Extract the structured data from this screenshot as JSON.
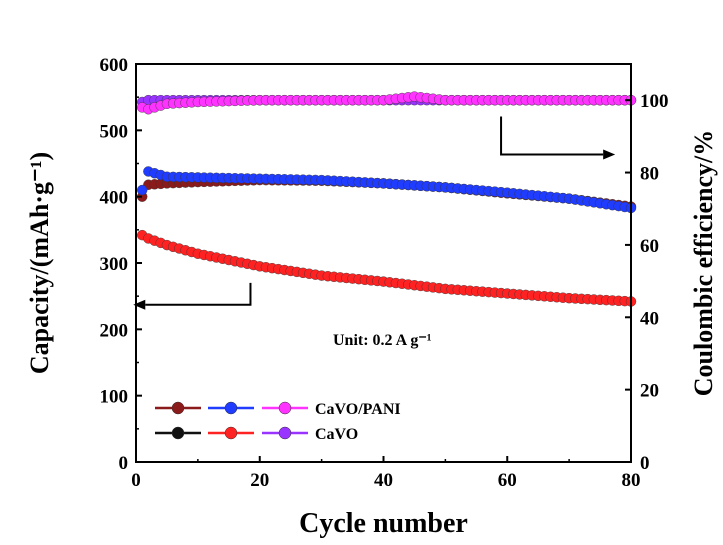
{
  "chart_data": {
    "type": "scatter",
    "xlabel": "Cycle number",
    "ylabel_left": "Capacity/(mAh·g⁻¹)",
    "ylabel_right": "Coulombic efficiency/%",
    "xlim": [
      0,
      80
    ],
    "ylim_left": [
      0,
      600
    ],
    "ylim_right": [
      0,
      110
    ],
    "x_ticks": [
      0,
      20,
      40,
      60,
      80
    ],
    "y_ticks_left": [
      0,
      100,
      200,
      300,
      400,
      500,
      600
    ],
    "y_ticks_right": [
      0,
      20,
      40,
      60,
      80,
      100
    ],
    "annotation": "Unit: 0.2 A g⁻¹",
    "legend": [
      {
        "label": "CaVO/PANI",
        "colors": [
          "#8b1a1a",
          "#1f3cff",
          "#ff33ff"
        ]
      },
      {
        "label": "CaVO",
        "colors": [
          "#111111",
          "#ff2222",
          "#9933ff"
        ]
      }
    ],
    "series": [
      {
        "name": "CaVO/PANI capacity",
        "axis": "left",
        "color": "#8b1a1a",
        "x": [
          1,
          2,
          5,
          10,
          20,
          30,
          40,
          50,
          60,
          70,
          80
        ],
        "y": [
          400,
          418,
          420,
          422,
          425,
          424,
          420,
          414,
          405,
          397,
          385
        ]
      },
      {
        "name": "CaVO/PANI capacity (blue)",
        "axis": "left",
        "color": "#1f3cff",
        "x": [
          1,
          2,
          5,
          10,
          20,
          30,
          40,
          50,
          60,
          70,
          80
        ],
        "y": [
          410,
          438,
          430,
          429,
          427,
          425,
          420,
          414,
          406,
          397,
          383
        ]
      },
      {
        "name": "CaVO capacity",
        "axis": "left",
        "color": "#ff2222",
        "x": [
          1,
          2,
          5,
          10,
          20,
          30,
          40,
          50,
          60,
          70,
          80
        ],
        "y": [
          342,
          337,
          327,
          314,
          295,
          281,
          272,
          261,
          254,
          247,
          242
        ]
      },
      {
        "name": "CaVO/PANI efficiency",
        "axis": "right",
        "color": "#ff33ff",
        "x": [
          1,
          2,
          5,
          10,
          20,
          30,
          40,
          45,
          50,
          60,
          70,
          80
        ],
        "y": [
          98,
          97.5,
          99,
          99.5,
          100,
          100,
          100,
          101,
          100,
          100,
          100,
          100
        ]
      },
      {
        "name": "CaVO efficiency",
        "axis": "right",
        "color": "#9933ff",
        "x": [
          1,
          2,
          5,
          10,
          20,
          30,
          40,
          50,
          60,
          70,
          80
        ],
        "y": [
          99.5,
          100,
          100,
          100,
          100,
          100,
          100,
          100,
          100,
          100,
          100
        ]
      }
    ],
    "arrows": [
      {
        "direction": "left",
        "points_to_axis": "left"
      },
      {
        "direction": "right",
        "points_to_axis": "right"
      }
    ]
  }
}
